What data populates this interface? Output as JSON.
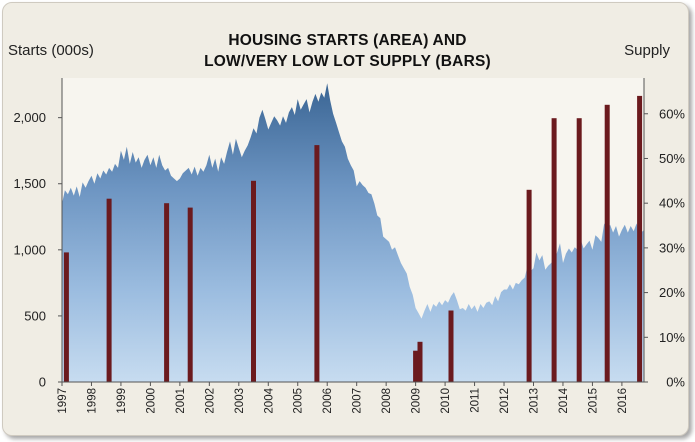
{
  "title_line1": "HOUSING STARTS (AREA) AND",
  "title_line2": "LOW/VERY LOW LOT SUPPLY (BARS)",
  "chart_data": {
    "type": "area",
    "title": "HOUSING STARTS (AREA) AND LOW/VERY LOW LOT SUPPLY (BARS)",
    "ylabel_left": "Starts (000s)",
    "ylabel_right": "Supply",
    "x_range": [
      1997.0,
      2016.75
    ],
    "y_left_range": [
      0,
      2300
    ],
    "y_right_range": [
      0,
      0.68
    ],
    "y_left_ticks": [
      {
        "value": 0,
        "label": "0"
      },
      {
        "value": 500,
        "label": "500"
      },
      {
        "value": 1000,
        "label": "1,000"
      },
      {
        "value": 1500,
        "label": "1,500"
      },
      {
        "value": 2000,
        "label": "2,000"
      }
    ],
    "y_right_ticks": [
      {
        "value": 0.0,
        "label": "0%"
      },
      {
        "value": 0.1,
        "label": "10%"
      },
      {
        "value": 0.2,
        "label": "20%"
      },
      {
        "value": 0.3,
        "label": "30%"
      },
      {
        "value": 0.4,
        "label": "40%"
      },
      {
        "value": 0.5,
        "label": "50%"
      },
      {
        "value": 0.6,
        "label": "60%"
      }
    ],
    "x_tick_labels": [
      "1997",
      "1998",
      "1999",
      "2000",
      "2001",
      "2002",
      "2003",
      "2004",
      "2005",
      "2006",
      "2007",
      "2008",
      "2009",
      "2010",
      "2011",
      "2012",
      "2013",
      "2014",
      "2015",
      "2016"
    ],
    "series": [
      {
        "name": "Housing starts",
        "kind": "area",
        "points": [
          [
            1997.0,
            1350
          ],
          [
            1997.1,
            1450
          ],
          [
            1997.2,
            1420
          ],
          [
            1997.3,
            1470
          ],
          [
            1997.4,
            1410
          ],
          [
            1997.5,
            1480
          ],
          [
            1997.6,
            1400
          ],
          [
            1997.7,
            1510
          ],
          [
            1997.8,
            1470
          ],
          [
            1997.9,
            1520
          ],
          [
            1998.0,
            1560
          ],
          [
            1998.1,
            1500
          ],
          [
            1998.2,
            1580
          ],
          [
            1998.3,
            1540
          ],
          [
            1998.4,
            1600
          ],
          [
            1998.5,
            1570
          ],
          [
            1998.6,
            1620
          ],
          [
            1998.7,
            1590
          ],
          [
            1998.8,
            1650
          ],
          [
            1998.9,
            1620
          ],
          [
            1999.0,
            1750
          ],
          [
            1999.1,
            1680
          ],
          [
            1999.2,
            1780
          ],
          [
            1999.3,
            1650
          ],
          [
            1999.4,
            1740
          ],
          [
            1999.5,
            1660
          ],
          [
            1999.6,
            1700
          ],
          [
            1999.7,
            1620
          ],
          [
            1999.8,
            1680
          ],
          [
            1999.9,
            1720
          ],
          [
            2000.0,
            1640
          ],
          [
            2000.1,
            1700
          ],
          [
            2000.2,
            1620
          ],
          [
            2000.3,
            1720
          ],
          [
            2000.4,
            1640
          ],
          [
            2000.5,
            1600
          ],
          [
            2000.6,
            1620
          ],
          [
            2000.7,
            1560
          ],
          [
            2000.8,
            1540
          ],
          [
            2000.9,
            1520
          ],
          [
            2001.0,
            1540
          ],
          [
            2001.1,
            1580
          ],
          [
            2001.2,
            1600
          ],
          [
            2001.3,
            1620
          ],
          [
            2001.4,
            1570
          ],
          [
            2001.5,
            1630
          ],
          [
            2001.6,
            1560
          ],
          [
            2001.7,
            1620
          ],
          [
            2001.8,
            1590
          ],
          [
            2001.9,
            1640
          ],
          [
            2002.0,
            1720
          ],
          [
            2002.1,
            1620
          ],
          [
            2002.2,
            1690
          ],
          [
            2002.3,
            1590
          ],
          [
            2002.4,
            1700
          ],
          [
            2002.5,
            1650
          ],
          [
            2002.6,
            1740
          ],
          [
            2002.7,
            1820
          ],
          [
            2002.8,
            1720
          ],
          [
            2002.9,
            1840
          ],
          [
            2003.0,
            1770
          ],
          [
            2003.1,
            1700
          ],
          [
            2003.2,
            1750
          ],
          [
            2003.3,
            1790
          ],
          [
            2003.4,
            1850
          ],
          [
            2003.5,
            1920
          ],
          [
            2003.6,
            1880
          ],
          [
            2003.7,
            2000
          ],
          [
            2003.8,
            2060
          ],
          [
            2003.9,
            1990
          ],
          [
            2004.0,
            1910
          ],
          [
            2004.1,
            1960
          ],
          [
            2004.2,
            2010
          ],
          [
            2004.3,
            1980
          ],
          [
            2004.4,
            1940
          ],
          [
            2004.5,
            2010
          ],
          [
            2004.6,
            1960
          ],
          [
            2004.7,
            2040
          ],
          [
            2004.8,
            2080
          ],
          [
            2004.9,
            2020
          ],
          [
            2005.0,
            2140
          ],
          [
            2005.1,
            2060
          ],
          [
            2005.2,
            2100
          ],
          [
            2005.3,
            2140
          ],
          [
            2005.4,
            2040
          ],
          [
            2005.5,
            2120
          ],
          [
            2005.6,
            2180
          ],
          [
            2005.7,
            2120
          ],
          [
            2005.8,
            2190
          ],
          [
            2005.9,
            2150
          ],
          [
            2006.0,
            2260
          ],
          [
            2006.1,
            2130
          ],
          [
            2006.2,
            2030
          ],
          [
            2006.3,
            1960
          ],
          [
            2006.4,
            1890
          ],
          [
            2006.5,
            1820
          ],
          [
            2006.6,
            1780
          ],
          [
            2006.7,
            1690
          ],
          [
            2006.8,
            1640
          ],
          [
            2006.9,
            1600
          ],
          [
            2007.0,
            1480
          ],
          [
            2007.1,
            1520
          ],
          [
            2007.2,
            1490
          ],
          [
            2007.3,
            1470
          ],
          [
            2007.4,
            1430
          ],
          [
            2007.5,
            1420
          ],
          [
            2007.6,
            1350
          ],
          [
            2007.7,
            1260
          ],
          [
            2007.8,
            1240
          ],
          [
            2007.9,
            1100
          ],
          [
            2008.0,
            1080
          ],
          [
            2008.1,
            1060
          ],
          [
            2008.2,
            1000
          ],
          [
            2008.3,
            1020
          ],
          [
            2008.4,
            960
          ],
          [
            2008.5,
            900
          ],
          [
            2008.6,
            860
          ],
          [
            2008.7,
            820
          ],
          [
            2008.8,
            720
          ],
          [
            2008.9,
            660
          ],
          [
            2009.0,
            560
          ],
          [
            2009.1,
            520
          ],
          [
            2009.2,
            480
          ],
          [
            2009.3,
            540
          ],
          [
            2009.4,
            590
          ],
          [
            2009.5,
            530
          ],
          [
            2009.6,
            590
          ],
          [
            2009.7,
            570
          ],
          [
            2009.8,
            610
          ],
          [
            2009.9,
            580
          ],
          [
            2010.0,
            620
          ],
          [
            2010.1,
            600
          ],
          [
            2010.2,
            650
          ],
          [
            2010.3,
            680
          ],
          [
            2010.4,
            620
          ],
          [
            2010.5,
            550
          ],
          [
            2010.6,
            560
          ],
          [
            2010.7,
            540
          ],
          [
            2010.8,
            590
          ],
          [
            2010.9,
            550
          ],
          [
            2011.0,
            580
          ],
          [
            2011.1,
            530
          ],
          [
            2011.2,
            590
          ],
          [
            2011.3,
            560
          ],
          [
            2011.4,
            600
          ],
          [
            2011.5,
            610
          ],
          [
            2011.6,
            580
          ],
          [
            2011.7,
            650
          ],
          [
            2011.8,
            610
          ],
          [
            2011.9,
            680
          ],
          [
            2012.0,
            700
          ],
          [
            2012.1,
            700
          ],
          [
            2012.2,
            740
          ],
          [
            2012.3,
            700
          ],
          [
            2012.4,
            750
          ],
          [
            2012.5,
            740
          ],
          [
            2012.6,
            770
          ],
          [
            2012.7,
            790
          ],
          [
            2012.8,
            880
          ],
          [
            2012.9,
            840
          ],
          [
            2013.0,
            860
          ],
          [
            2013.1,
            980
          ],
          [
            2013.2,
            920
          ],
          [
            2013.3,
            960
          ],
          [
            2013.4,
            850
          ],
          [
            2013.5,
            880
          ],
          [
            2013.6,
            900
          ],
          [
            2013.7,
            930
          ],
          [
            2013.8,
            980
          ],
          [
            2013.9,
            1050
          ],
          [
            2014.0,
            900
          ],
          [
            2014.1,
            970
          ],
          [
            2014.2,
            1010
          ],
          [
            2014.3,
            980
          ],
          [
            2014.4,
            1020
          ],
          [
            2014.5,
            1000
          ],
          [
            2014.6,
            1080
          ],
          [
            2014.7,
            1010
          ],
          [
            2014.8,
            1040
          ],
          [
            2014.9,
            1070
          ],
          [
            2015.0,
            1000
          ],
          [
            2015.1,
            1110
          ],
          [
            2015.2,
            1090
          ],
          [
            2015.3,
            1060
          ],
          [
            2015.4,
            1200
          ],
          [
            2015.5,
            1160
          ],
          [
            2015.6,
            1190
          ],
          [
            2015.7,
            1130
          ],
          [
            2015.8,
            1180
          ],
          [
            2015.9,
            1100
          ],
          [
            2016.0,
            1150
          ],
          [
            2016.1,
            1190
          ],
          [
            2016.2,
            1130
          ],
          [
            2016.3,
            1180
          ],
          [
            2016.4,
            1140
          ],
          [
            2016.5,
            1200
          ],
          [
            2016.6,
            1120
          ],
          [
            2016.75,
            1150
          ]
        ]
      },
      {
        "name": "Low/very low lot supply",
        "kind": "bar",
        "axis": "right",
        "points": [
          [
            1997.15,
            0.29
          ],
          [
            1998.6,
            0.41
          ],
          [
            2000.55,
            0.4
          ],
          [
            2001.35,
            0.39
          ],
          [
            2003.5,
            0.45
          ],
          [
            2005.65,
            0.53
          ],
          [
            2009.0,
            0.07
          ],
          [
            2009.15,
            0.09
          ],
          [
            2010.2,
            0.16
          ],
          [
            2012.85,
            0.43
          ],
          [
            2013.7,
            0.59
          ],
          [
            2014.55,
            0.59
          ],
          [
            2015.5,
            0.62
          ],
          [
            2016.6,
            0.64
          ]
        ]
      }
    ]
  }
}
